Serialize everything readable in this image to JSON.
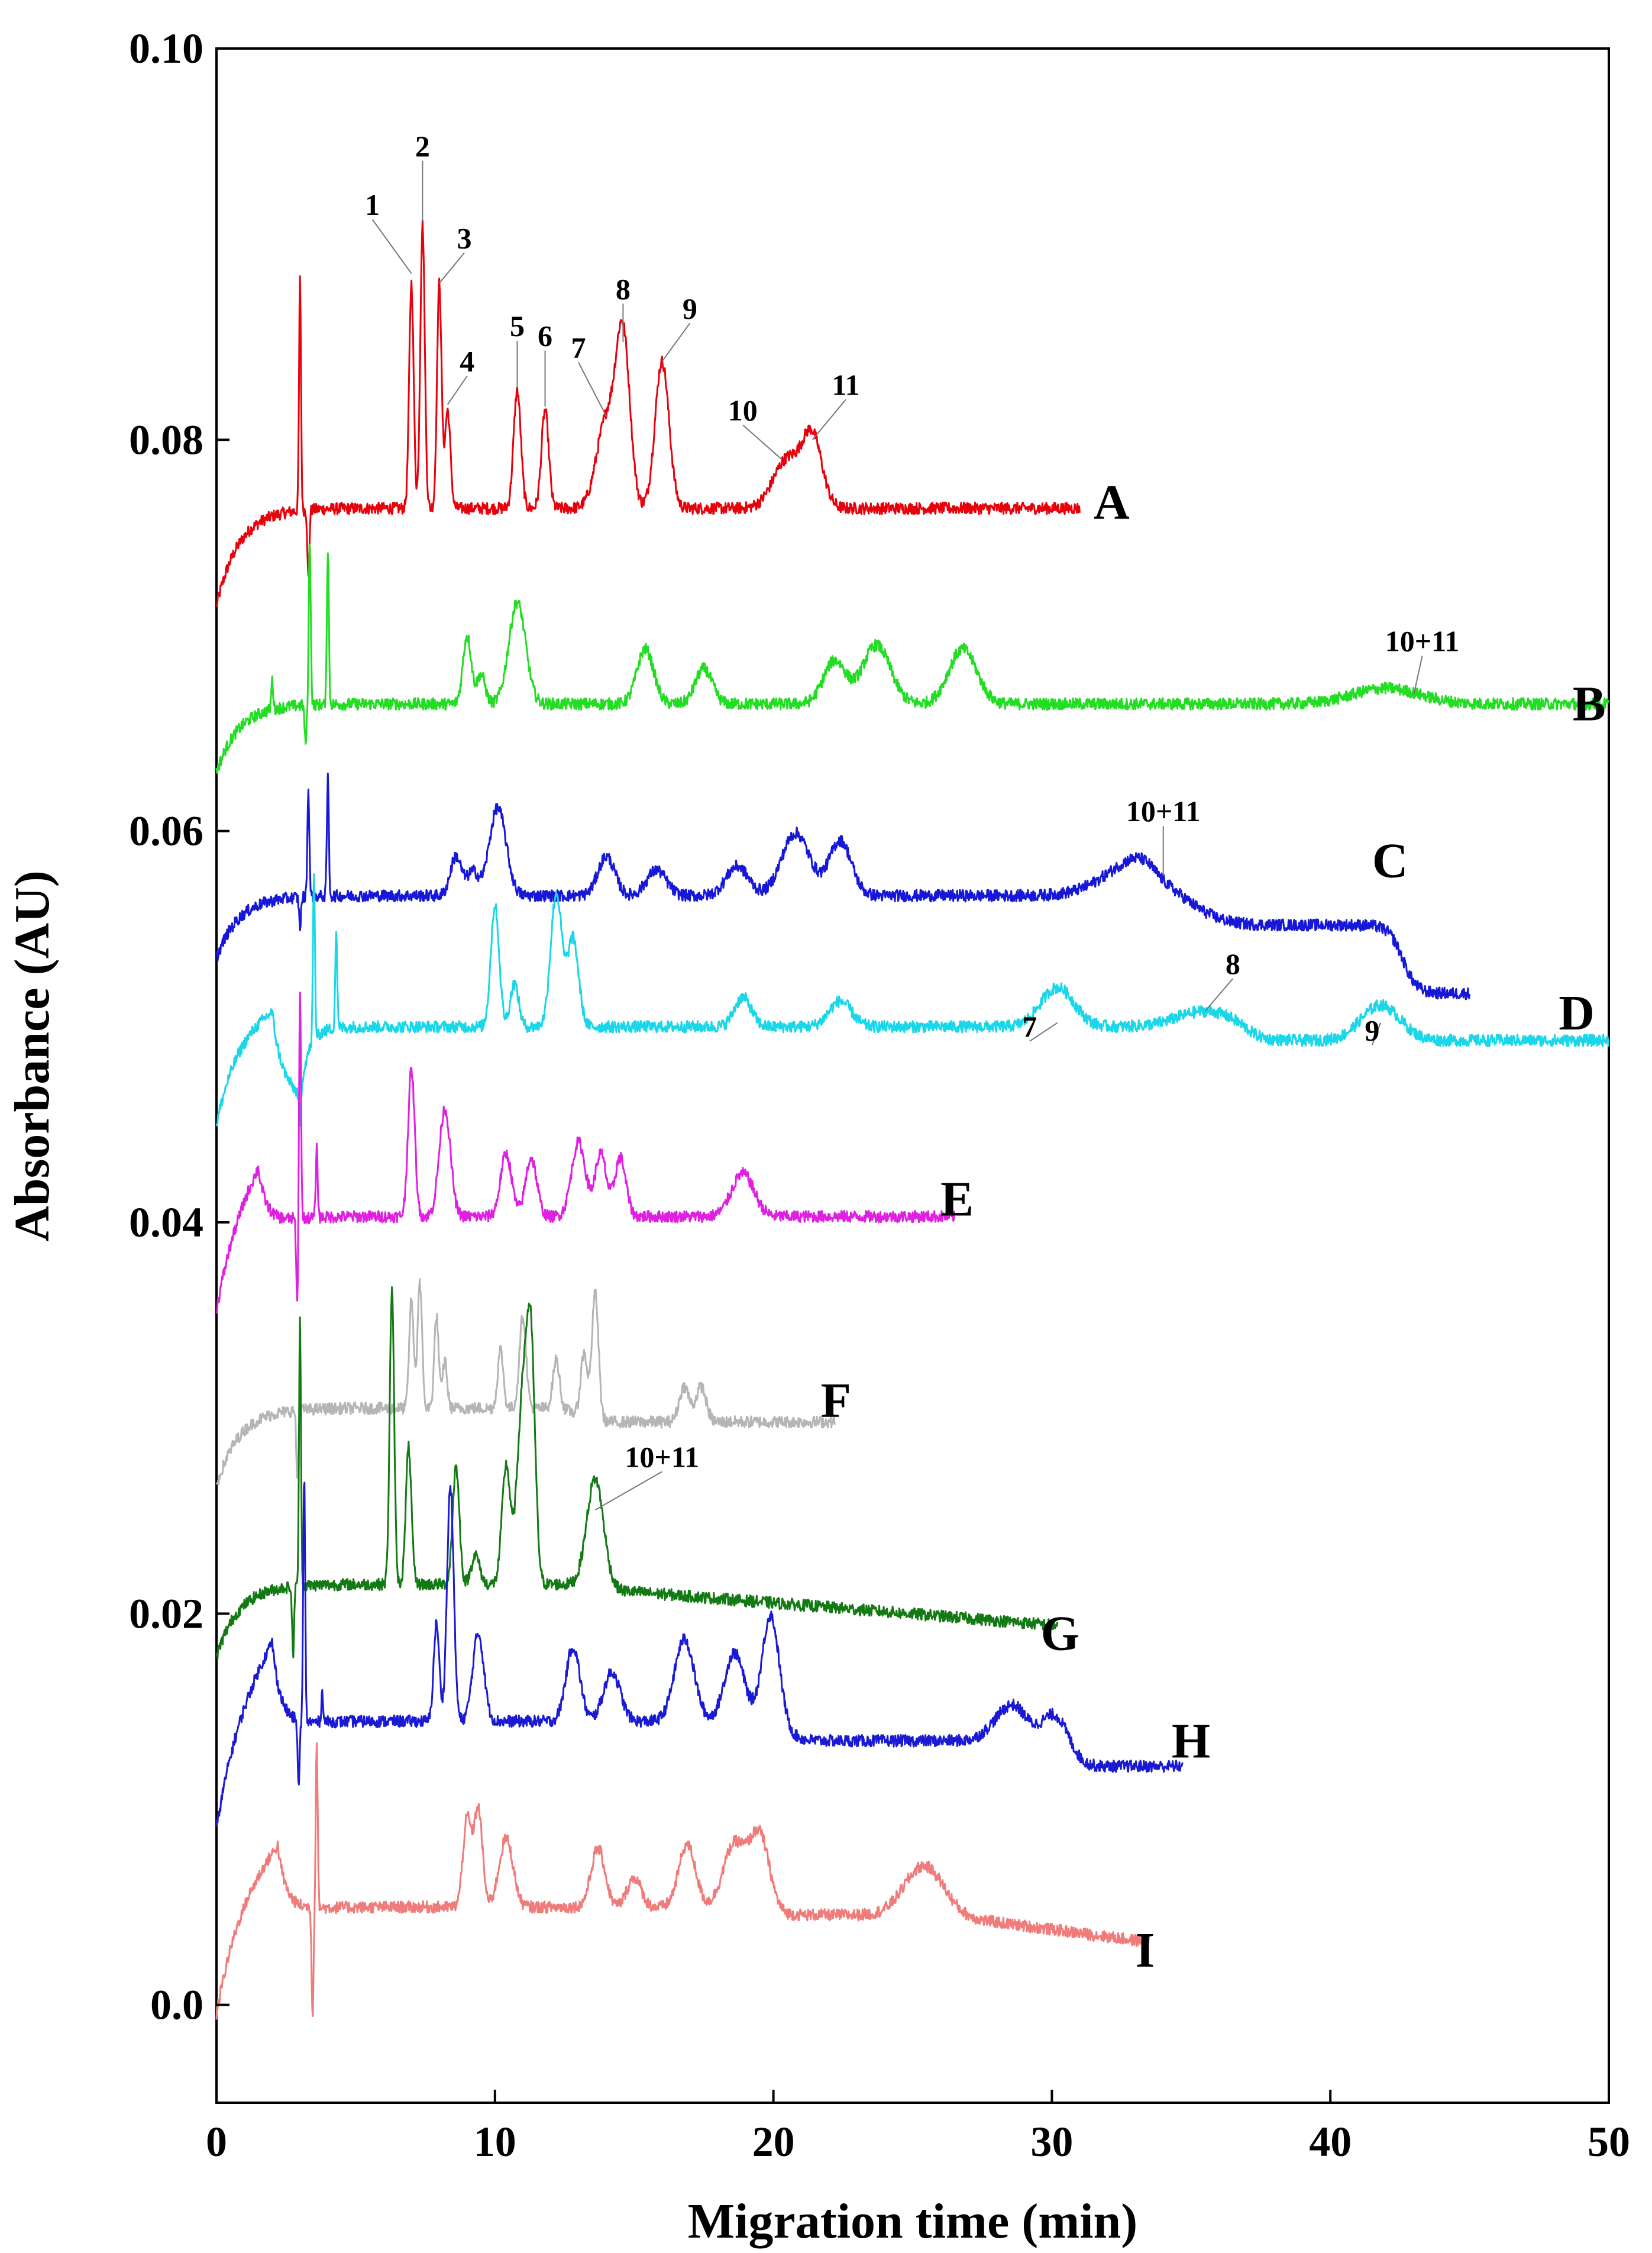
{
  "chart_data": {
    "type": "line",
    "xlabel": "Migration time (min)",
    "ylabel": "Absorbance (AU)",
    "xlim": [
      0,
      50
    ],
    "ylim": [
      -0.005,
      0.1
    ],
    "xticks": [
      0,
      10,
      20,
      30,
      40,
      50
    ],
    "xtick_labels": [
      "0",
      "10",
      "20",
      "30",
      "40",
      "50"
    ],
    "yticks": [
      0.0,
      0.02,
      0.04,
      0.06,
      0.08,
      0.1
    ],
    "ytick_labels": [
      "0.0",
      "0.02",
      "0.04",
      "0.06",
      "0.08",
      "0.10"
    ],
    "grid": false,
    "series": [
      {
        "name": "A",
        "color": "#e8000b",
        "baseline": 0.0765,
        "start": 0.0715,
        "end": 31.0,
        "label_at": [
          31.5,
          0.0768
        ],
        "spikes": [
          [
            3.0,
            0.0118
          ],
          [
            3.3,
            -0.0035
          ]
        ],
        "peaks": [
          [
            7.0,
            0.0115,
            0.08
          ],
          [
            7.4,
            0.0145,
            0.08
          ],
          [
            8.0,
            0.0115,
            0.08
          ],
          [
            8.3,
            0.005,
            0.1
          ],
          [
            10.8,
            0.006,
            0.13
          ],
          [
            11.8,
            0.005,
            0.13
          ],
          [
            14.0,
            0.0045,
            0.35
          ],
          [
            14.6,
            0.0085,
            0.25
          ],
          [
            16.0,
            0.0075,
            0.25
          ],
          [
            20.5,
            0.0025,
            0.5
          ],
          [
            21.4,
            0.0035,
            0.35
          ]
        ],
        "annotations": [
          {
            "text": "1",
            "x": 7.0,
            "y": 0.0885,
            "lx": 5.6,
            "ly": 0.0915
          },
          {
            "text": "2",
            "x": 7.4,
            "y": 0.0912,
            "lx": 7.4,
            "ly": 0.0945
          },
          {
            "text": "3",
            "x": 8.0,
            "y": 0.088,
            "lx": 8.9,
            "ly": 0.0898
          },
          {
            "text": "4",
            "x": 8.3,
            "y": 0.0818,
            "lx": 9.0,
            "ly": 0.0835
          },
          {
            "text": "5",
            "x": 10.8,
            "y": 0.0827,
            "lx": 10.8,
            "ly": 0.0853
          },
          {
            "text": "6",
            "x": 11.8,
            "y": 0.0817,
            "lx": 11.8,
            "ly": 0.0848
          },
          {
            "text": "7",
            "x": 14.0,
            "y": 0.0812,
            "lx": 13.0,
            "ly": 0.0842
          },
          {
            "text": "8",
            "x": 14.6,
            "y": 0.085,
            "lx": 14.6,
            "ly": 0.0872
          },
          {
            "text": "9",
            "x": 16.0,
            "y": 0.084,
            "lx": 17.0,
            "ly": 0.0862
          },
          {
            "text": "10",
            "x": 20.3,
            "y": 0.079,
            "lx": 18.9,
            "ly": 0.081
          },
          {
            "text": "11",
            "x": 21.4,
            "y": 0.08,
            "lx": 22.6,
            "ly": 0.0823
          }
        ]
      },
      {
        "name": "B",
        "color": "#22dd22",
        "baseline": 0.0665,
        "start": 0.063,
        "end": 50.0,
        "label_at": [
          48.7,
          0.0665
        ],
        "spikes": [
          [
            2.0,
            0.0015
          ],
          [
            3.2,
            -0.002
          ],
          [
            3.35,
            0.0085
          ],
          [
            4.0,
            0.008
          ]
        ],
        "peaks": [
          [
            9.0,
            0.0035,
            0.15
          ],
          [
            9.5,
            0.0015,
            0.15
          ],
          [
            10.8,
            0.0052,
            0.3
          ],
          [
            15.4,
            0.0028,
            0.3
          ],
          [
            17.5,
            0.0018,
            0.3
          ],
          [
            22.2,
            0.0022,
            0.4
          ],
          [
            23.7,
            0.003,
            0.5
          ],
          [
            26.8,
            0.0028,
            0.5
          ],
          [
            42.0,
            0.0008,
            1.2
          ]
        ],
        "annotations": [
          {
            "text": "10+11",
            "x": 43.0,
            "y": 0.067,
            "lx": 43.3,
            "ly": 0.0692
          }
        ]
      },
      {
        "name": "C",
        "color": "#1717d9",
        "baseline": 0.0567,
        "start": 0.0535,
        "end": 45.0,
        "label_at": [
          41.5,
          0.0585
        ],
        "spikes": [
          [
            3.0,
            -0.0015
          ],
          [
            3.3,
            0.0055
          ],
          [
            4.0,
            0.006
          ]
        ],
        "steps": [
          [
            33.6,
            -0.0015
          ],
          [
            42.6,
            -0.0035
          ]
        ],
        "peaks": [
          [
            8.6,
            0.002,
            0.2
          ],
          [
            9.2,
            0.0012,
            0.2
          ],
          [
            10.1,
            0.0045,
            0.3
          ],
          [
            14.0,
            0.002,
            0.3
          ],
          [
            15.8,
            0.0013,
            0.35
          ],
          [
            18.7,
            0.0015,
            0.4
          ],
          [
            20.8,
            0.0032,
            0.5
          ],
          [
            22.4,
            0.0028,
            0.4
          ],
          [
            33.5,
            0.0022,
            1.3
          ]
        ],
        "annotations": [
          {
            "text": "10+11",
            "x": 34.0,
            "y": 0.0577,
            "lx": 34.0,
            "ly": 0.0605
          }
        ]
      },
      {
        "name": "D",
        "color": "#19d7e9",
        "baseline": 0.05,
        "start": 0.045,
        "end": 50.0,
        "label_at": [
          48.2,
          0.0507
        ],
        "spikes": [
          [
            3.0,
            -0.0015
          ],
          [
            3.5,
            0.0085
          ],
          [
            4.3,
            0.005
          ]
        ],
        "steps": [
          [
            2.0,
            0.0035,
            "fromStart"
          ],
          [
            3.0,
            -0.0035,
            "fromStart"
          ],
          [
            37.0,
            -0.0007
          ]
        ],
        "peaks": [
          [
            10.0,
            0.0062,
            0.15
          ],
          [
            10.7,
            0.0022,
            0.15
          ],
          [
            12.2,
            0.0068,
            0.2
          ],
          [
            12.8,
            0.0045,
            0.2
          ],
          [
            18.9,
            0.0015,
            0.3
          ],
          [
            22.4,
            0.0013,
            0.4
          ],
          [
            30.2,
            0.002,
            0.6
          ],
          [
            35.5,
            0.0008,
            1.0
          ],
          [
            41.8,
            0.0018,
            0.7
          ]
        ],
        "annotations": [
          {
            "text": "7",
            "x": 30.2,
            "y": 0.0502,
            "lx": 29.2,
            "ly": 0.0495
          },
          {
            "text": "8",
            "x": 35.5,
            "y": 0.0508,
            "lx": 36.5,
            "ly": 0.0527
          },
          {
            "text": "9",
            "x": 41.8,
            "y": 0.0502,
            "lx": 41.5,
            "ly": 0.0493
          }
        ]
      },
      {
        "name": "E",
        "color": "#e020e0",
        "baseline": 0.0403,
        "start": 0.0355,
        "end": 26.5,
        "label_at": [
          26.0,
          0.0412
        ],
        "spikes": [
          [
            2.9,
            -0.0045
          ],
          [
            3.0,
            0.0115
          ],
          [
            3.6,
            0.0035
          ]
        ],
        "steps": [
          [
            1.5,
            0.0032,
            "fromStart"
          ]
        ],
        "peaks": [
          [
            7.0,
            0.0075,
            0.12
          ],
          [
            8.2,
            0.0055,
            0.2
          ],
          [
            10.4,
            0.0032,
            0.2
          ],
          [
            11.3,
            0.003,
            0.2
          ],
          [
            13.0,
            0.0038,
            0.25
          ],
          [
            13.8,
            0.0032,
            0.2
          ],
          [
            14.5,
            0.003,
            0.2
          ],
          [
            18.9,
            0.0022,
            0.4
          ]
        ],
        "annotations": []
      },
      {
        "name": "F",
        "color": "#b5b5b5",
        "baseline": 0.0305,
        "start": 0.0265,
        "end": 22.2,
        "label_at": [
          21.7,
          0.0309
        ],
        "spikes": [
          [
            2.9,
            -0.0035
          ]
        ],
        "steps": [
          [
            13.0,
            -0.0007
          ]
        ],
        "peaks": [
          [
            7.0,
            0.0055,
            0.08
          ],
          [
            7.3,
            0.0065,
            0.08
          ],
          [
            7.9,
            0.0047,
            0.08
          ],
          [
            8.2,
            0.0025,
            0.08
          ],
          [
            10.2,
            0.003,
            0.1
          ],
          [
            11.0,
            0.0047,
            0.12
          ],
          [
            12.2,
            0.0025,
            0.12
          ],
          [
            13.2,
            0.0033,
            0.12
          ],
          [
            13.6,
            0.0065,
            0.12
          ],
          [
            16.8,
            0.0018,
            0.18
          ],
          [
            17.4,
            0.0018,
            0.18
          ]
        ],
        "annotations": []
      },
      {
        "name": "G",
        "color": "#137913",
        "baseline": 0.0215,
        "start": 0.0178,
        "end": 30.2,
        "label_at": [
          29.6,
          0.019
        ],
        "spikes": [
          [
            2.75,
            -0.0035
          ],
          [
            3.0,
            0.0135
          ]
        ],
        "steps": [
          [
            13.8,
            -0.0003
          ],
          [
            14.2,
            -0.0018,
            "linear"
          ]
        ],
        "peaks": [
          [
            6.3,
            0.015,
            0.08
          ],
          [
            6.9,
            0.007,
            0.1
          ],
          [
            8.6,
            0.006,
            0.12
          ],
          [
            9.3,
            0.0015,
            0.15
          ],
          [
            10.4,
            0.006,
            0.15
          ],
          [
            11.0,
            0.0095,
            0.2
          ],
          [
            11.3,
            0.0105,
            0.15
          ],
          [
            13.6,
            0.0055,
            0.3
          ]
        ],
        "annotations": [
          {
            "text": "10+11",
            "x": 13.6,
            "y": 0.0253,
            "lx": 16.0,
            "ly": 0.0275
          }
        ]
      },
      {
        "name": "H",
        "color": "#1a1ad5",
        "baseline": 0.0145,
        "start": 0.009,
        "end": 34.7,
        "label_at": [
          34.3,
          0.0135
        ],
        "spikes": [
          [
            2.95,
            -0.0035
          ],
          [
            3.15,
            0.0125
          ],
          [
            3.8,
            0.0015
          ]
        ],
        "steps": [
          [
            2.0,
            0.0045,
            "fromStart"
          ],
          [
            20.5,
            -0.001
          ],
          [
            28.0,
            -0.0013
          ]
        ],
        "peaks": [
          [
            7.9,
            0.005,
            0.1
          ],
          [
            8.4,
            0.012,
            0.12
          ],
          [
            9.4,
            0.0045,
            0.2
          ],
          [
            12.8,
            0.0038,
            0.25
          ],
          [
            14.2,
            0.0025,
            0.3
          ],
          [
            16.8,
            0.0042,
            0.35
          ],
          [
            18.6,
            0.0035,
            0.35
          ],
          [
            19.9,
            0.0055,
            0.3
          ],
          [
            28.6,
            0.003,
            0.6
          ],
          [
            30.1,
            0.0025,
            0.5
          ]
        ],
        "annotations": []
      },
      {
        "name": "I",
        "color": "#f07b7b",
        "baseline": 0.005,
        "start": -0.0005,
        "end": 33.5,
        "label_at": [
          33.0,
          0.0028
        ],
        "spikes": [
          [
            3.45,
            -0.0055
          ],
          [
            3.6,
            0.0085
          ]
        ],
        "steps": [
          [
            2.2,
            0.0035,
            "fromStart"
          ],
          [
            20.0,
            -0.0004
          ],
          [
            26.0,
            -0.0014,
            "linear"
          ]
        ],
        "peaks": [
          [
            9.0,
            0.0045,
            0.15
          ],
          [
            9.4,
            0.005,
            0.15
          ],
          [
            10.4,
            0.0035,
            0.25
          ],
          [
            13.7,
            0.003,
            0.25
          ],
          [
            15.0,
            0.0015,
            0.25
          ],
          [
            16.9,
            0.0032,
            0.3
          ],
          [
            18.6,
            0.0032,
            0.4
          ],
          [
            19.5,
            0.0037,
            0.35
          ],
          [
            25.4,
            0.0025,
            0.7
          ]
        ],
        "annotations": []
      }
    ]
  }
}
